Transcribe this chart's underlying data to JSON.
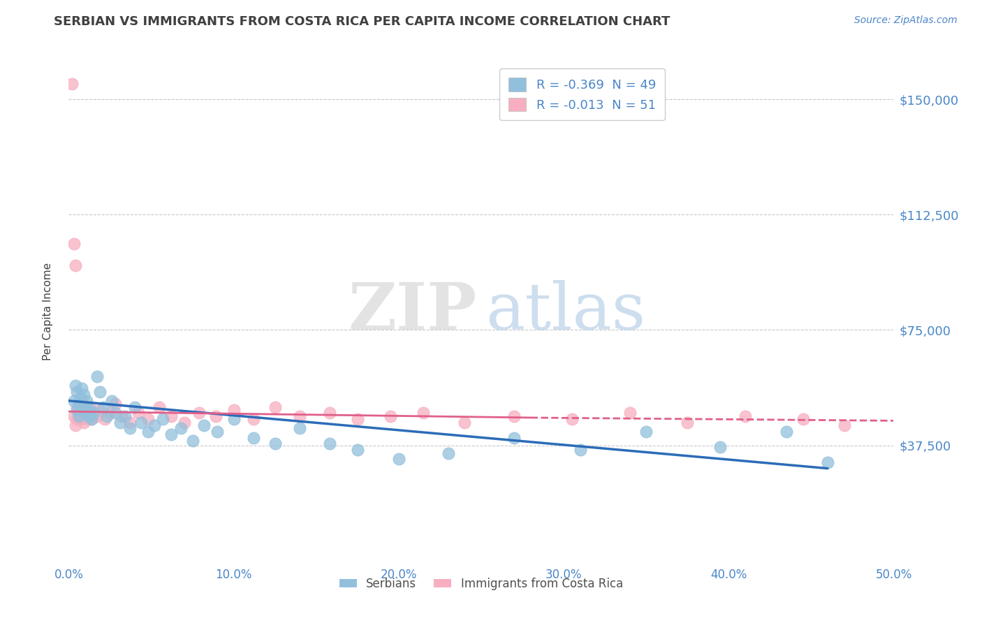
{
  "title": "SERBIAN VS IMMIGRANTS FROM COSTA RICA PER CAPITA INCOME CORRELATION CHART",
  "source": "Source: ZipAtlas.com",
  "ylabel": "Per Capita Income",
  "xlim": [
    0.0,
    0.5
  ],
  "ylim": [
    0,
    162000
  ],
  "yticks": [
    0,
    37500,
    75000,
    112500,
    150000
  ],
  "ytick_labels": [
    "",
    "$37,500",
    "$75,000",
    "$112,500",
    "$150,000"
  ],
  "xticks": [
    0.0,
    0.1,
    0.2,
    0.3,
    0.4,
    0.5
  ],
  "xtick_labels": [
    "0.0%",
    "10.0%",
    "20.0%",
    "30.0%",
    "40.0%",
    "50.0%"
  ],
  "serbian_R": -0.369,
  "serbian_N": 49,
  "costarica_R": -0.013,
  "costarica_N": 51,
  "serbian_color": "#92C0DC",
  "costarica_color": "#F7AEC0",
  "serbian_line_color": "#2b6cb8",
  "costarica_line_color": "#e0608a",
  "bg_color": "#ffffff",
  "grid_color": "#c8c8c8",
  "title_color": "#404040",
  "tick_label_color": "#4a86c8",
  "legend_label_serbian": "Serbians",
  "legend_label_costarica": "Immigrants from Costa Rica",
  "serbian_x": [
    0.003,
    0.004,
    0.005,
    0.005,
    0.006,
    0.006,
    0.007,
    0.008,
    0.009,
    0.01,
    0.01,
    0.011,
    0.012,
    0.013,
    0.014,
    0.015,
    0.017,
    0.019,
    0.021,
    0.023,
    0.026,
    0.028,
    0.031,
    0.034,
    0.037,
    0.04,
    0.044,
    0.048,
    0.052,
    0.057,
    0.062,
    0.068,
    0.075,
    0.082,
    0.09,
    0.1,
    0.112,
    0.125,
    0.14,
    0.158,
    0.175,
    0.2,
    0.23,
    0.27,
    0.31,
    0.35,
    0.395,
    0.435,
    0.46
  ],
  "serbian_y": [
    52000,
    57000,
    55000,
    49000,
    51000,
    47000,
    53000,
    56000,
    54000,
    50000,
    48000,
    52000,
    47000,
    49000,
    46000,
    48000,
    60000,
    55000,
    50000,
    47000,
    52000,
    48000,
    45000,
    47000,
    43000,
    50000,
    45000,
    42000,
    44000,
    46000,
    41000,
    43000,
    39000,
    44000,
    42000,
    46000,
    40000,
    38000,
    43000,
    38000,
    36000,
    33000,
    35000,
    40000,
    36000,
    42000,
    37000,
    42000,
    32000
  ],
  "costarica_x": [
    0.002,
    0.003,
    0.003,
    0.004,
    0.004,
    0.005,
    0.005,
    0.006,
    0.006,
    0.007,
    0.007,
    0.008,
    0.008,
    0.009,
    0.009,
    0.01,
    0.011,
    0.012,
    0.013,
    0.014,
    0.015,
    0.017,
    0.019,
    0.022,
    0.025,
    0.028,
    0.032,
    0.037,
    0.042,
    0.048,
    0.055,
    0.062,
    0.07,
    0.079,
    0.089,
    0.1,
    0.112,
    0.125,
    0.14,
    0.158,
    0.175,
    0.195,
    0.215,
    0.24,
    0.27,
    0.305,
    0.34,
    0.375,
    0.41,
    0.445,
    0.47
  ],
  "costarica_y": [
    155000,
    103000,
    47000,
    96000,
    44000,
    50000,
    46000,
    48000,
    51000,
    50000,
    46000,
    48000,
    52000,
    45000,
    47000,
    49000,
    46000,
    48000,
    50000,
    46000,
    48000,
    47000,
    49000,
    46000,
    48000,
    51000,
    47000,
    45000,
    48000,
    46000,
    50000,
    47000,
    45000,
    48000,
    47000,
    49000,
    46000,
    50000,
    47000,
    48000,
    46000,
    47000,
    48000,
    45000,
    47000,
    46000,
    48000,
    45000,
    47000,
    46000,
    44000
  ],
  "serbian_line_x0": 0.0,
  "serbian_line_x1": 0.46,
  "serbian_line_y0": 52000,
  "serbian_line_y1": 30000,
  "costarica_line_x0": 0.0,
  "costarica_line_x1": 0.28,
  "costarica_line_x_dash": 0.5,
  "costarica_line_y0": 48500,
  "costarica_line_y1": 46500,
  "costarica_line_y_dash": 45500
}
